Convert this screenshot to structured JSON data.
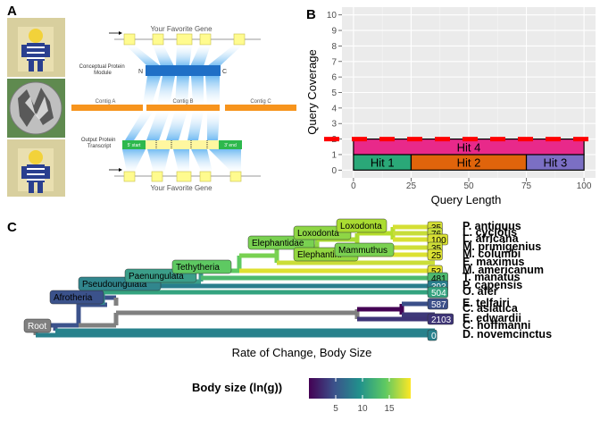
{
  "panel_labels": {
    "a": "A",
    "b": "B",
    "c": "C"
  },
  "panel_a": {
    "image_descriptions": [
      "lego-figure-image",
      "noise-texture-image",
      "lego-figure-image"
    ],
    "top_label": "Your Favorite Gene",
    "bottom_label": "Your Favorite Gene",
    "protein_label": "Conceptual Protein\nModule",
    "protein_n": "N",
    "protein_c": "C",
    "contig_a": "Contig A",
    "contig_b": "Contig B",
    "contig_c": "Contig C",
    "transcript_label": "Output Protein\nTranscript",
    "transcript_left": "5' start",
    "transcript_right": "3' end",
    "colors": {
      "gene": "#fffb8f",
      "protein": "#1f78d1",
      "contig": "#f7941d",
      "transcript_bar": "#fff7a0",
      "transcript_end": "#2db84d"
    }
  },
  "panel_b": {
    "chart_data": {
      "type": "bar",
      "xlabel": "Query Length",
      "ylabel": "Query Coverage",
      "x_ticks": [
        0,
        25,
        50,
        75,
        100
      ],
      "y_ticks": [
        0,
        1,
        2,
        3,
        4,
        5,
        6,
        7,
        8,
        9,
        10
      ],
      "xlim": [
        -5,
        105
      ],
      "ylim": [
        -0.5,
        10.5
      ],
      "threshold_line": 2,
      "threshold_color": "#ff0000",
      "grid": true,
      "bars": [
        {
          "label": "Hit 1",
          "x_start": 0,
          "x_end": 25,
          "y_start": 0,
          "y_end": 1,
          "color": "#2aa878"
        },
        {
          "label": "Hit 2",
          "x_start": 25,
          "x_end": 75,
          "y_start": 0,
          "y_end": 1,
          "color": "#e0640b"
        },
        {
          "label": "Hit 3",
          "x_start": 75,
          "x_end": 100,
          "y_start": 0,
          "y_end": 1,
          "color": "#7b6fc4"
        },
        {
          "label": "Hit 4",
          "x_start": 0,
          "x_end": 100,
          "y_start": 1,
          "y_end": 2,
          "color": "#e8298a"
        }
      ]
    }
  },
  "panel_c": {
    "chart_data": {
      "type": "tree",
      "xlabel": "Rate of Change, Body Size",
      "legend_title": "Body size (ln(g))",
      "legend_ticks": [
        5,
        10,
        15
      ],
      "legend_range": [
        0,
        19
      ],
      "nodes": [
        {
          "label": "Root",
          "color": "#808080"
        },
        {
          "label": "Afrotheria",
          "color": "#3b528b"
        },
        {
          "label": "Pseudoungulata",
          "color": "#31868d"
        },
        {
          "label": "Paenungulata",
          "color": "#3b9e89"
        },
        {
          "label": "Tethytheria",
          "color": "#5ec962"
        },
        {
          "label": "Elephantidae",
          "color": "#79d151"
        },
        {
          "label": "Loxodonta",
          "color": "#8ed645"
        },
        {
          "label": "Loxodonta",
          "color": "#aadc32"
        },
        {
          "label": "Elephantini",
          "color": "#93d741"
        },
        {
          "label": "Mammuthus",
          "color": "#7ad151"
        }
      ],
      "tips": [
        {
          "name": "P. antiquus",
          "value": "35",
          "body_size": 17.8
        },
        {
          "name": "L. cyclotis",
          "value": "76",
          "body_size": 17.4
        },
        {
          "name": "L. africana",
          "value": "100",
          "body_size": 17.9
        },
        {
          "name": "M. primigenius",
          "value": "35",
          "body_size": 17.6
        },
        {
          "name": "M. columbi",
          "value": "25",
          "body_size": 18.0
        },
        {
          "name": "E. maximus",
          "value": "",
          "body_size": 17.5
        },
        {
          "name": "M. americanum",
          "value": "52",
          "body_size": 18.1
        },
        {
          "name": "T. manatus",
          "value": "481",
          "body_size": 12.9
        },
        {
          "name": "P. capensis",
          "value": "393",
          "body_size": 8.1
        },
        {
          "name": "O. afer",
          "value": "504",
          "body_size": 11.0
        },
        {
          "name": "E. telfairi",
          "value": "587",
          "body_size": 4.6
        },
        {
          "name": "C. asiatica",
          "value": "",
          "body_size": 3.2
        },
        {
          "name": "E. edwardii",
          "value": "2103",
          "body_size": 3.0
        },
        {
          "name": "C. hoffmanni",
          "value": "",
          "body_size": 8.4
        },
        {
          "name": "D. novemcinctus",
          "value": "0",
          "body_size": 8.3
        }
      ]
    }
  }
}
